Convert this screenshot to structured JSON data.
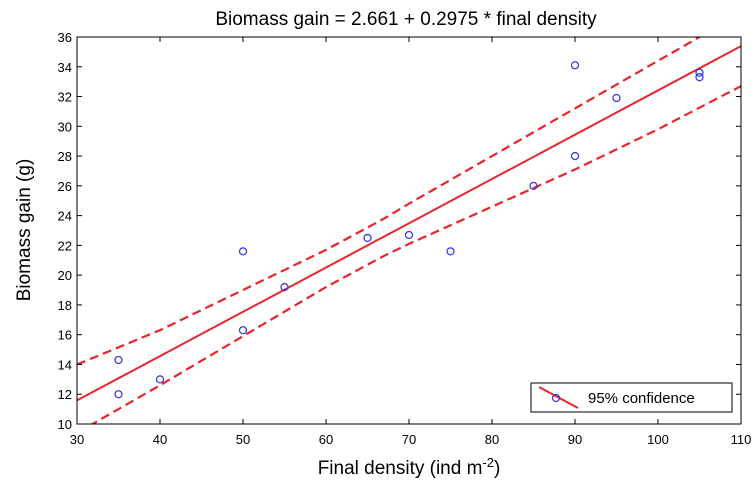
{
  "chart_data": {
    "type": "scatter",
    "title": "Biomass gain = 2.661 + 0.2975 * final density",
    "xlabel": {
      "main": "Final density (ind m",
      "sup": "-2",
      "tail": ")"
    },
    "ylabel": "Biomass gain (g)",
    "xlim": [
      30,
      110
    ],
    "ylim": [
      10,
      36
    ],
    "xticks": [
      30,
      40,
      50,
      60,
      70,
      80,
      90,
      100,
      110
    ],
    "yticks": [
      10,
      12,
      14,
      16,
      18,
      20,
      22,
      24,
      26,
      28,
      30,
      32,
      34,
      36
    ],
    "grid": false,
    "legend": {
      "label": "95% confidence",
      "position": "bottom-right"
    },
    "regression": {
      "intercept": 2.661,
      "slope": 0.2975
    },
    "confidence_band": {
      "x": [
        30,
        40,
        50,
        60,
        67,
        70,
        80,
        90,
        100,
        110
      ],
      "lower": [
        9.4,
        12.6,
        15.9,
        19.2,
        21.3,
        22.1,
        24.6,
        27.1,
        29.8,
        32.7
      ],
      "upper": [
        14.0,
        16.3,
        19.0,
        21.7,
        23.8,
        24.8,
        28.0,
        31.2,
        34.4,
        37.6
      ]
    },
    "points": [
      {
        "x": 35,
        "y": 14.3
      },
      {
        "x": 35,
        "y": 12.0
      },
      {
        "x": 40,
        "y": 13.0
      },
      {
        "x": 50,
        "y": 21.6
      },
      {
        "x": 50,
        "y": 16.3
      },
      {
        "x": 55,
        "y": 19.2
      },
      {
        "x": 65,
        "y": 22.5
      },
      {
        "x": 70,
        "y": 22.7
      },
      {
        "x": 75,
        "y": 21.6
      },
      {
        "x": 85,
        "y": 26.0
      },
      {
        "x": 90,
        "y": 34.1
      },
      {
        "x": 90,
        "y": 28.0
      },
      {
        "x": 95,
        "y": 31.9
      },
      {
        "x": 105,
        "y": 33.6
      },
      {
        "x": 105,
        "y": 33.3
      }
    ],
    "colors": {
      "fit": "#e8262a",
      "points": "#3b3bdc",
      "axis": "#000000"
    }
  }
}
